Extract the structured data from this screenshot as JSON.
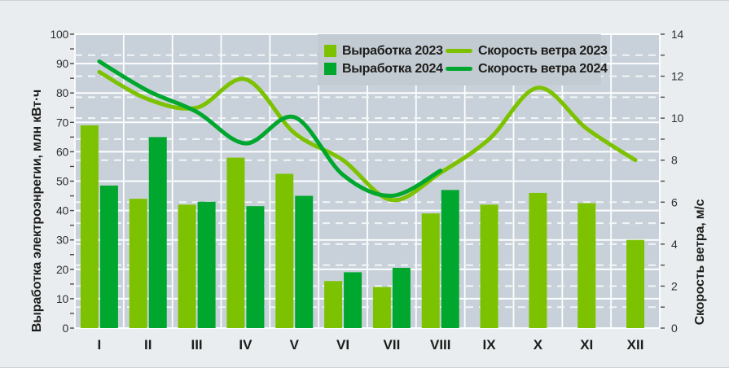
{
  "chart_data": {
    "type": "bar+line",
    "categories": [
      "I",
      "II",
      "III",
      "IV",
      "V",
      "VI",
      "VII",
      "VIII",
      "IX",
      "X",
      "XI",
      "XII"
    ],
    "bar_series": [
      {
        "name": "Выработка 2023",
        "color": "#7DC200",
        "values": [
          69,
          44,
          42,
          58,
          52.5,
          16,
          14,
          39,
          42,
          46,
          42.5,
          30
        ]
      },
      {
        "name": "Выработка 2024",
        "color": "#00A72E",
        "values": [
          48.5,
          65,
          43,
          41.5,
          45,
          19,
          20.5,
          47,
          null,
          null,
          null,
          null
        ]
      }
    ],
    "line_series": [
      {
        "name": "Скорость ветра 2023",
        "color": "#7DC200",
        "values": [
          12.2,
          10.9,
          10.5,
          11.85,
          9.3,
          8.0,
          6.1,
          7.4,
          9.0,
          11.45,
          9.5,
          8.0
        ]
      },
      {
        "name": "Скорость ветра 2024",
        "color": "#00A72E",
        "values": [
          12.7,
          11.3,
          10.3,
          8.8,
          10.05,
          7.3,
          6.3,
          7.5,
          null,
          null,
          null,
          null
        ]
      }
    ],
    "left_axis": {
      "title": "Выработка электроэнрегии, млн кВт·ч",
      "min": 0,
      "max": 100,
      "step": 10,
      "tick_labels": [
        "0",
        "10",
        "20",
        "30",
        "40",
        "50",
        "60",
        "70",
        "80",
        "90",
        "100"
      ]
    },
    "right_axis": {
      "title": "Скорость ветра, м/с",
      "min": 0,
      "max": 14,
      "step": 2,
      "tick_labels": [
        "0",
        "2",
        "4",
        "6",
        "8",
        "10",
        "12",
        "14"
      ]
    },
    "grid": {
      "solid_horizontal_every_left_units": 10,
      "dashed_horizontal_every_right_units": 1,
      "vertical_per_month": true
    },
    "legend_position": "top-inside"
  },
  "colors": {
    "page_bg": "#E9EDF0",
    "plot_bg": "#C8D1D9",
    "legend_bg": "#C3CBD2",
    "grid_solid": "#FDFEFF",
    "grid_dashed": "#F2F6F8",
    "tick": "#4A4A4A",
    "text": "#1D1D1B",
    "green_light": "#7DC200",
    "green_dark": "#00A72E"
  }
}
